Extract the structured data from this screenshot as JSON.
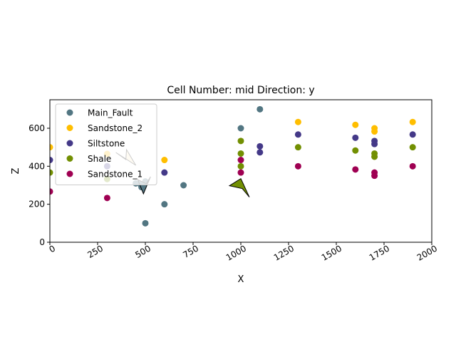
{
  "chart_data": {
    "type": "scatter",
    "title": "Cell Number: mid Direction: y",
    "xlabel": "X",
    "ylabel": "Z",
    "xlim": [
      0,
      2000
    ],
    "ylim": [
      0,
      750
    ],
    "xticks": [
      0,
      250,
      500,
      750,
      1000,
      1250,
      1500,
      1750,
      2000
    ],
    "yticks": [
      0,
      200,
      400,
      600
    ],
    "xtick_labels": [
      "0",
      "250",
      "500",
      "750",
      "1000",
      "1250",
      "1500",
      "1750",
      "2000"
    ],
    "ytick_labels": [
      "0",
      "200",
      "400",
      "600"
    ],
    "grid": false,
    "legend_position": "upper-left",
    "series": [
      {
        "name": "Main_Fault",
        "color": "#527682",
        "points": [
          [
            1100,
            700
          ],
          [
            1000,
            600
          ],
          [
            700,
            300
          ],
          [
            600,
            200
          ],
          [
            500,
            100
          ],
          [
            450,
            310
          ],
          [
            475,
            305
          ],
          [
            500,
            320
          ],
          [
            480,
            290
          ]
        ]
      },
      {
        "name": "Sandstone_2",
        "color": "#ffbe00",
        "points": [
          [
            0,
            500
          ],
          [
            300,
            465
          ],
          [
            600,
            433
          ],
          [
            1300,
            633
          ],
          [
            1600,
            618
          ],
          [
            1700,
            600
          ],
          [
            1700,
            583
          ],
          [
            1900,
            633
          ]
        ]
      },
      {
        "name": "Siltstone",
        "color": "#443988",
        "points": [
          [
            0,
            433
          ],
          [
            300,
            400
          ],
          [
            600,
            367
          ],
          [
            1100,
            505
          ],
          [
            1100,
            473
          ],
          [
            1300,
            567
          ],
          [
            1600,
            550
          ],
          [
            1700,
            533
          ],
          [
            1700,
            517
          ],
          [
            1900,
            567
          ]
        ]
      },
      {
        "name": "Shale",
        "color": "#728f02",
        "points": [
          [
            0,
            367
          ],
          [
            300,
            333
          ],
          [
            1000,
            533
          ],
          [
            1000,
            467
          ],
          [
            1000,
            400
          ],
          [
            1300,
            500
          ],
          [
            1600,
            483
          ],
          [
            1700,
            467
          ],
          [
            1700,
            450
          ],
          [
            1900,
            500
          ]
        ]
      },
      {
        "name": "Sandstone_1",
        "color": "#9f0052",
        "points": [
          [
            0,
            267
          ],
          [
            300,
            233
          ],
          [
            1000,
            433
          ],
          [
            1000,
            367
          ],
          [
            1000,
            300
          ],
          [
            1300,
            400
          ],
          [
            1600,
            383
          ],
          [
            1700,
            367
          ],
          [
            1700,
            350
          ],
          [
            1900,
            400
          ]
        ]
      }
    ],
    "arrows": [
      {
        "color": "#fbe8c4",
        "tip": [
          450,
          405
        ],
        "direction": "up-left"
      },
      {
        "color": "#728f02",
        "tip": [
          1000,
          335
        ],
        "direction": "down-right"
      },
      {
        "color": "#527682",
        "tip": [
          490,
          255
        ],
        "direction": "down"
      }
    ]
  }
}
